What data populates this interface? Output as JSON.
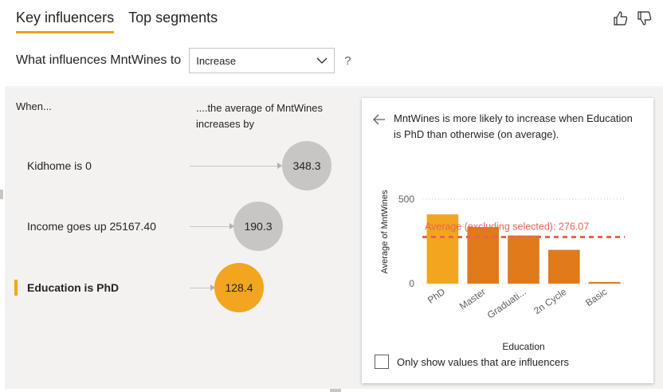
{
  "tabs": [
    {
      "label": "Key influencers",
      "active": true
    },
    {
      "label": "Top segments",
      "active": false
    }
  ],
  "feedback": {
    "like_icon": "thumbs-up-icon",
    "dislike_icon": "thumbs-down-icon"
  },
  "question": {
    "label": "What influences MntWines to",
    "dropdown_value": "Increase",
    "help": "?"
  },
  "list_header": {
    "when": "When...",
    "average": "....the average of MntWines increases by"
  },
  "influencers": [
    {
      "label": "Kidhome is 0",
      "value": "348.3",
      "selected": false
    },
    {
      "label": "Income goes up 25167.40",
      "value": "190.3",
      "selected": false
    },
    {
      "label": "Education is PhD",
      "value": "128.4",
      "selected": true
    }
  ],
  "detail": {
    "title": "MntWines is more likely to increase when Education is PhD than otherwise (on average).",
    "checkbox_label": "Only show values that are influencers"
  },
  "chart_data": {
    "type": "bar",
    "categories": [
      "PhD",
      "Master",
      "Graduati...",
      "2n Cycle",
      "Basic"
    ],
    "values": [
      410,
      335,
      285,
      200,
      10
    ],
    "highlight_index": 0,
    "ylim": [
      0,
      580
    ],
    "yticks": [
      0,
      500
    ],
    "ylabel": "Average of MntWines",
    "xlabel": "Education",
    "average_line": {
      "value": 276.07,
      "label": "Average (excluding selected): 276.07"
    },
    "colors": {
      "selected": "#f2a51f",
      "others": "#e07a1b",
      "average": "#e8644e"
    }
  }
}
